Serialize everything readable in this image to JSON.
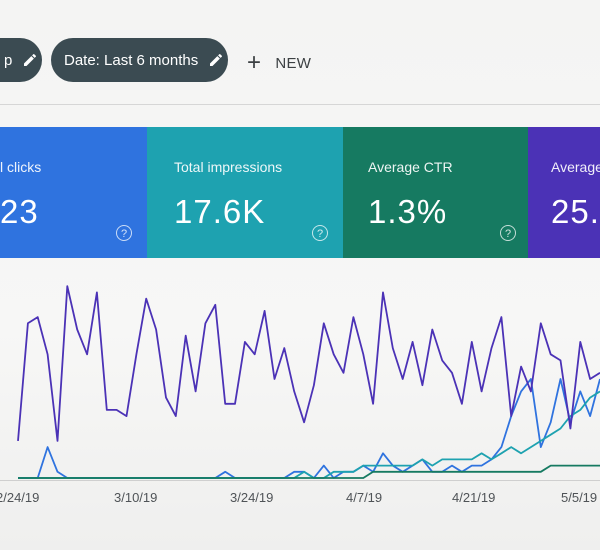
{
  "filters": {
    "query_chip_label": "p",
    "date_chip_label": "Date: Last 6 months",
    "new_button_label": "NEW"
  },
  "metrics": [
    {
      "label": "l clicks",
      "value": "23",
      "color": "#2f73df"
    },
    {
      "label": "Total impressions",
      "value": "17.6K",
      "color": "#1ea2b0"
    },
    {
      "label": "Average CTR",
      "value": "1.3%",
      "color": "#167a61"
    },
    {
      "label": "Average",
      "value": "25.:",
      "color": "#4b32b6"
    }
  ],
  "help_glyph": "?",
  "chart_data": {
    "type": "line",
    "x_tick_labels": [
      "2/24/19",
      "3/10/19",
      "3/24/19",
      "4/7/19",
      "4/21/19",
      "5/5/19"
    ],
    "series": [
      {
        "color": "#2f73df",
        "values": [
          0,
          0,
          0,
          5,
          1,
          0,
          0,
          0,
          0,
          0,
          0,
          0,
          0,
          0,
          0,
          0,
          0,
          0,
          0,
          0,
          0,
          1,
          0,
          0,
          0,
          0,
          0,
          0,
          1,
          1,
          0,
          2,
          0,
          1,
          1,
          2,
          1,
          4,
          2,
          1,
          2,
          3,
          1,
          1,
          2,
          1,
          2,
          2,
          3,
          5,
          10,
          14,
          16,
          5,
          9,
          16,
          9,
          14,
          10,
          16
        ]
      },
      {
        "color": "#1ea2b0",
        "values": [
          0,
          0,
          0,
          0,
          0,
          0,
          0,
          0,
          0,
          0,
          0,
          0,
          0,
          0,
          0,
          0,
          0,
          0,
          0,
          0,
          0,
          0,
          0,
          0,
          0,
          0,
          0,
          0,
          0,
          1,
          0,
          0,
          1,
          1,
          1,
          2,
          2,
          2,
          2,
          2,
          2,
          3,
          2,
          3,
          3,
          3,
          3,
          4,
          3,
          4,
          5,
          4,
          5,
          6,
          7,
          8,
          10,
          11,
          13,
          14
        ]
      },
      {
        "color": "#167a61",
        "values": [
          0,
          0,
          0,
          0,
          0,
          0,
          0,
          0,
          0,
          0,
          0,
          0,
          0,
          0,
          0,
          0,
          0,
          0,
          0,
          0,
          0,
          0,
          0,
          0,
          0,
          0,
          0,
          0,
          0,
          0,
          0,
          0,
          0,
          0,
          0,
          0,
          1,
          1,
          1,
          1,
          1,
          1,
          1,
          1,
          1,
          1,
          1,
          1,
          1,
          1,
          1,
          1,
          1,
          1,
          2,
          2,
          2,
          2,
          2,
          2
        ]
      },
      {
        "color": "#4b32b6",
        "values": [
          6,
          25,
          26,
          20,
          6,
          31,
          24,
          20,
          30,
          11,
          11,
          10,
          20,
          29,
          24,
          13,
          10,
          23,
          14,
          25,
          28,
          12,
          12,
          22,
          20,
          27,
          16,
          21,
          14,
          9,
          15,
          25,
          20,
          17,
          26,
          20,
          12,
          30,
          21,
          16,
          22,
          15,
          24,
          19,
          17,
          12,
          22,
          14,
          21,
          26,
          10,
          18,
          14,
          25,
          20,
          19,
          8,
          22,
          16,
          17
        ]
      }
    ]
  }
}
